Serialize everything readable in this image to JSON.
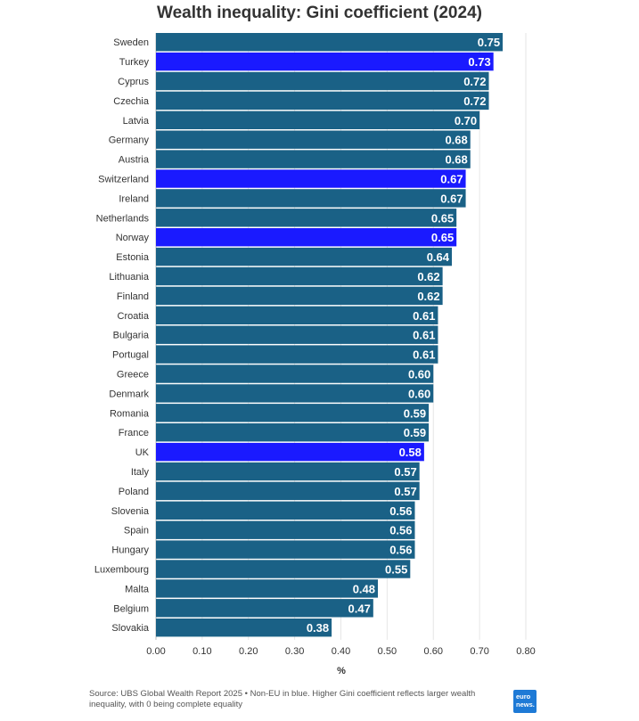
{
  "chart_data": {
    "type": "bar",
    "orientation": "horizontal",
    "title": "Wealth inequality: Gini coefficient (2024)",
    "xlabel": "%",
    "xlim": [
      0,
      0.8
    ],
    "xticks": [
      "0.00",
      "0.10",
      "0.20",
      "0.30",
      "0.40",
      "0.50",
      "0.60",
      "0.70",
      "0.80"
    ],
    "grid": true,
    "colors": {
      "eu": "#1a6186",
      "non_eu": "#1a1aff"
    },
    "categories": [
      "Sweden",
      "Turkey",
      "Cyprus",
      "Czechia",
      "Latvia",
      "Germany",
      "Austria",
      "Switzerland",
      "Ireland",
      "Netherlands",
      "Norway",
      "Estonia",
      "Lithuania",
      "Finland",
      "Croatia",
      "Bulgaria",
      "Portugal",
      "Greece",
      "Denmark",
      "Romania",
      "France",
      "UK",
      "Italy",
      "Poland",
      "Slovenia",
      "Spain",
      "Hungary",
      "Luxembourg",
      "Malta",
      "Belgium",
      "Slovakia"
    ],
    "values": [
      0.75,
      0.73,
      0.72,
      0.72,
      0.7,
      0.68,
      0.68,
      0.67,
      0.67,
      0.65,
      0.65,
      0.64,
      0.62,
      0.62,
      0.61,
      0.61,
      0.61,
      0.6,
      0.6,
      0.59,
      0.59,
      0.58,
      0.57,
      0.57,
      0.56,
      0.56,
      0.56,
      0.55,
      0.48,
      0.47,
      0.38
    ],
    "value_labels": [
      "0.75",
      "0.73",
      "0.72",
      "0.72",
      "0.70",
      "0.68",
      "0.68",
      "0.67",
      "0.67",
      "0.65",
      "0.65",
      "0.64",
      "0.62",
      "0.62",
      "0.61",
      "0.61",
      "0.61",
      "0.60",
      "0.60",
      "0.59",
      "0.59",
      "0.58",
      "0.57",
      "0.57",
      "0.56",
      "0.56",
      "0.56",
      "0.55",
      "0.48",
      "0.47",
      "0.38"
    ],
    "non_eu": [
      "Turkey",
      "Switzerland",
      "Norway",
      "UK"
    ]
  },
  "footer": {
    "note": "Source: UBS Global Wealth Report 2025 • Non-EU in blue. Higher Gini coefficient reflects larger wealth inequality, with 0 being complete equality"
  },
  "logo": {
    "line1": "euro",
    "line2": "news."
  }
}
